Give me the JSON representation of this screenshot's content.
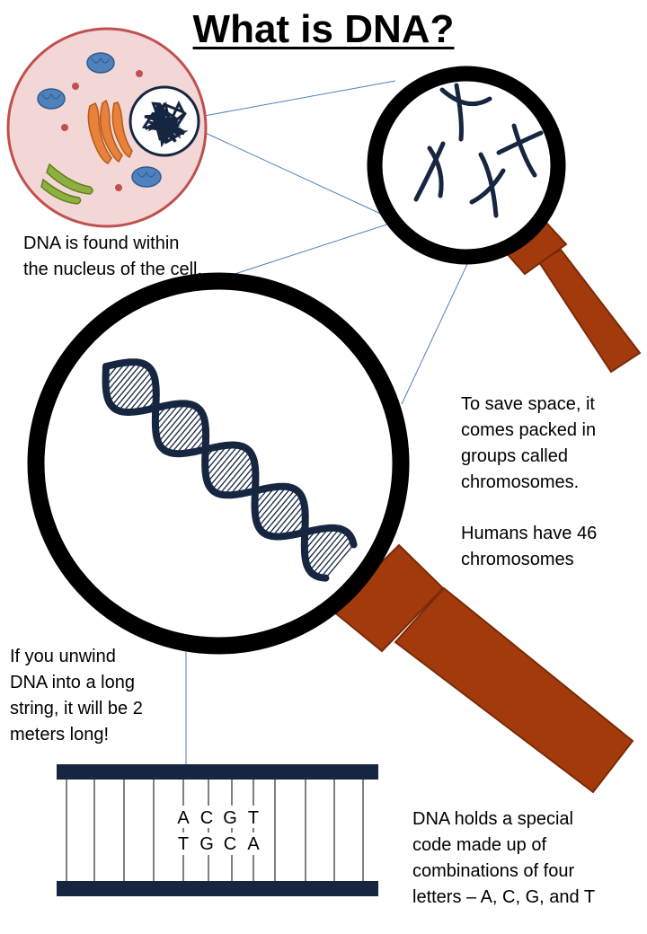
{
  "title": "What is DNA?",
  "captions": {
    "nucleus": "DNA is found within\nthe nucleus of the cell.",
    "chromosomes": "To save space, it\ncomes packed in\ngroups called\nchromosomes.",
    "humans": "Humans have 46\nchromosomes",
    "unwind": "If you unwind\nDNA into a long\nstring, it will be 2\nmeters long!",
    "code": "DNA holds a special\ncode made up of\ncombinations of four\nletters – A, C, G, and T"
  },
  "bases": {
    "top": [
      "A",
      "C",
      "G",
      "T"
    ],
    "bottom": [
      "T",
      "G",
      "C",
      "A"
    ]
  },
  "colors": {
    "navy": "#162640",
    "handle": "#a33a0c",
    "handle_dark": "#7a2a06",
    "cell_fill": "#f3d6d6",
    "cell_border": "#c0504d",
    "mitochondria": "#4f81bd",
    "golgi": "#e8813a",
    "er": "#8db040",
    "guide_line": "#4f81bd"
  }
}
